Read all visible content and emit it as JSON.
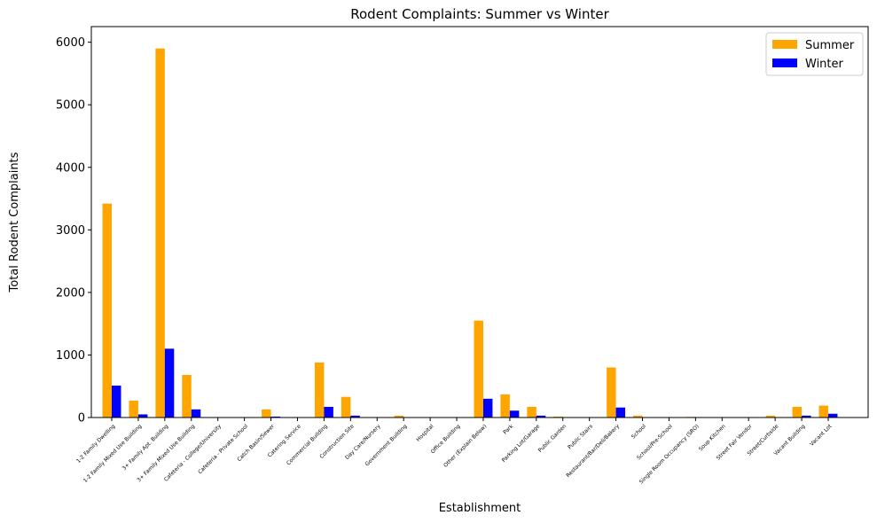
{
  "chart_data": {
    "type": "bar",
    "title": "Rodent Complaints: Summer vs Winter",
    "xlabel": "Establishment",
    "ylabel": "Total Rodent Complaints",
    "ylim": [
      0,
      6250
    ],
    "yticks": [
      0,
      1000,
      2000,
      3000,
      4000,
      5000,
      6000
    ],
    "grid": false,
    "legend_position": "top-right",
    "categories": [
      "1-2 Family Dwelling",
      "1-2 Family Mixed Use Building",
      "3+ Family Apt. Building",
      "3+ Family Mixed Use Building",
      "Cafeteria - College/University",
      "Cafeteria - Private School",
      "Catch Basin/Sewer",
      "Catering Service",
      "Commercial Building",
      "Construction Site",
      "Day Care/Nursery",
      "Government Building",
      "Hospital",
      "Office Building",
      "Other (Explain Below)",
      "Park",
      "Parking Lot/Garage",
      "Public Garden",
      "Public Stairs",
      "Restaurant/Bar/Deli/Bakery",
      "School",
      "School/Pre-School",
      "Single Room Occupancy (SRO)",
      "Soup Kitchen",
      "Street Fair Vendor",
      "Street/Curbside",
      "Vacant Building",
      "Vacant Lot"
    ],
    "series": [
      {
        "name": "Summer",
        "color": "#ffa500",
        "values": [
          3420,
          270,
          5900,
          680,
          0,
          0,
          130,
          0,
          880,
          330,
          0,
          30,
          0,
          0,
          1550,
          370,
          170,
          15,
          0,
          800,
          30,
          0,
          10,
          0,
          0,
          30,
          170,
          190
        ]
      },
      {
        "name": "Winter",
        "color": "#0000ff",
        "values": [
          510,
          50,
          1100,
          130,
          0,
          0,
          15,
          0,
          170,
          30,
          0,
          5,
          0,
          0,
          300,
          110,
          30,
          0,
          0,
          160,
          5,
          0,
          3,
          0,
          0,
          5,
          30,
          60
        ]
      }
    ]
  }
}
